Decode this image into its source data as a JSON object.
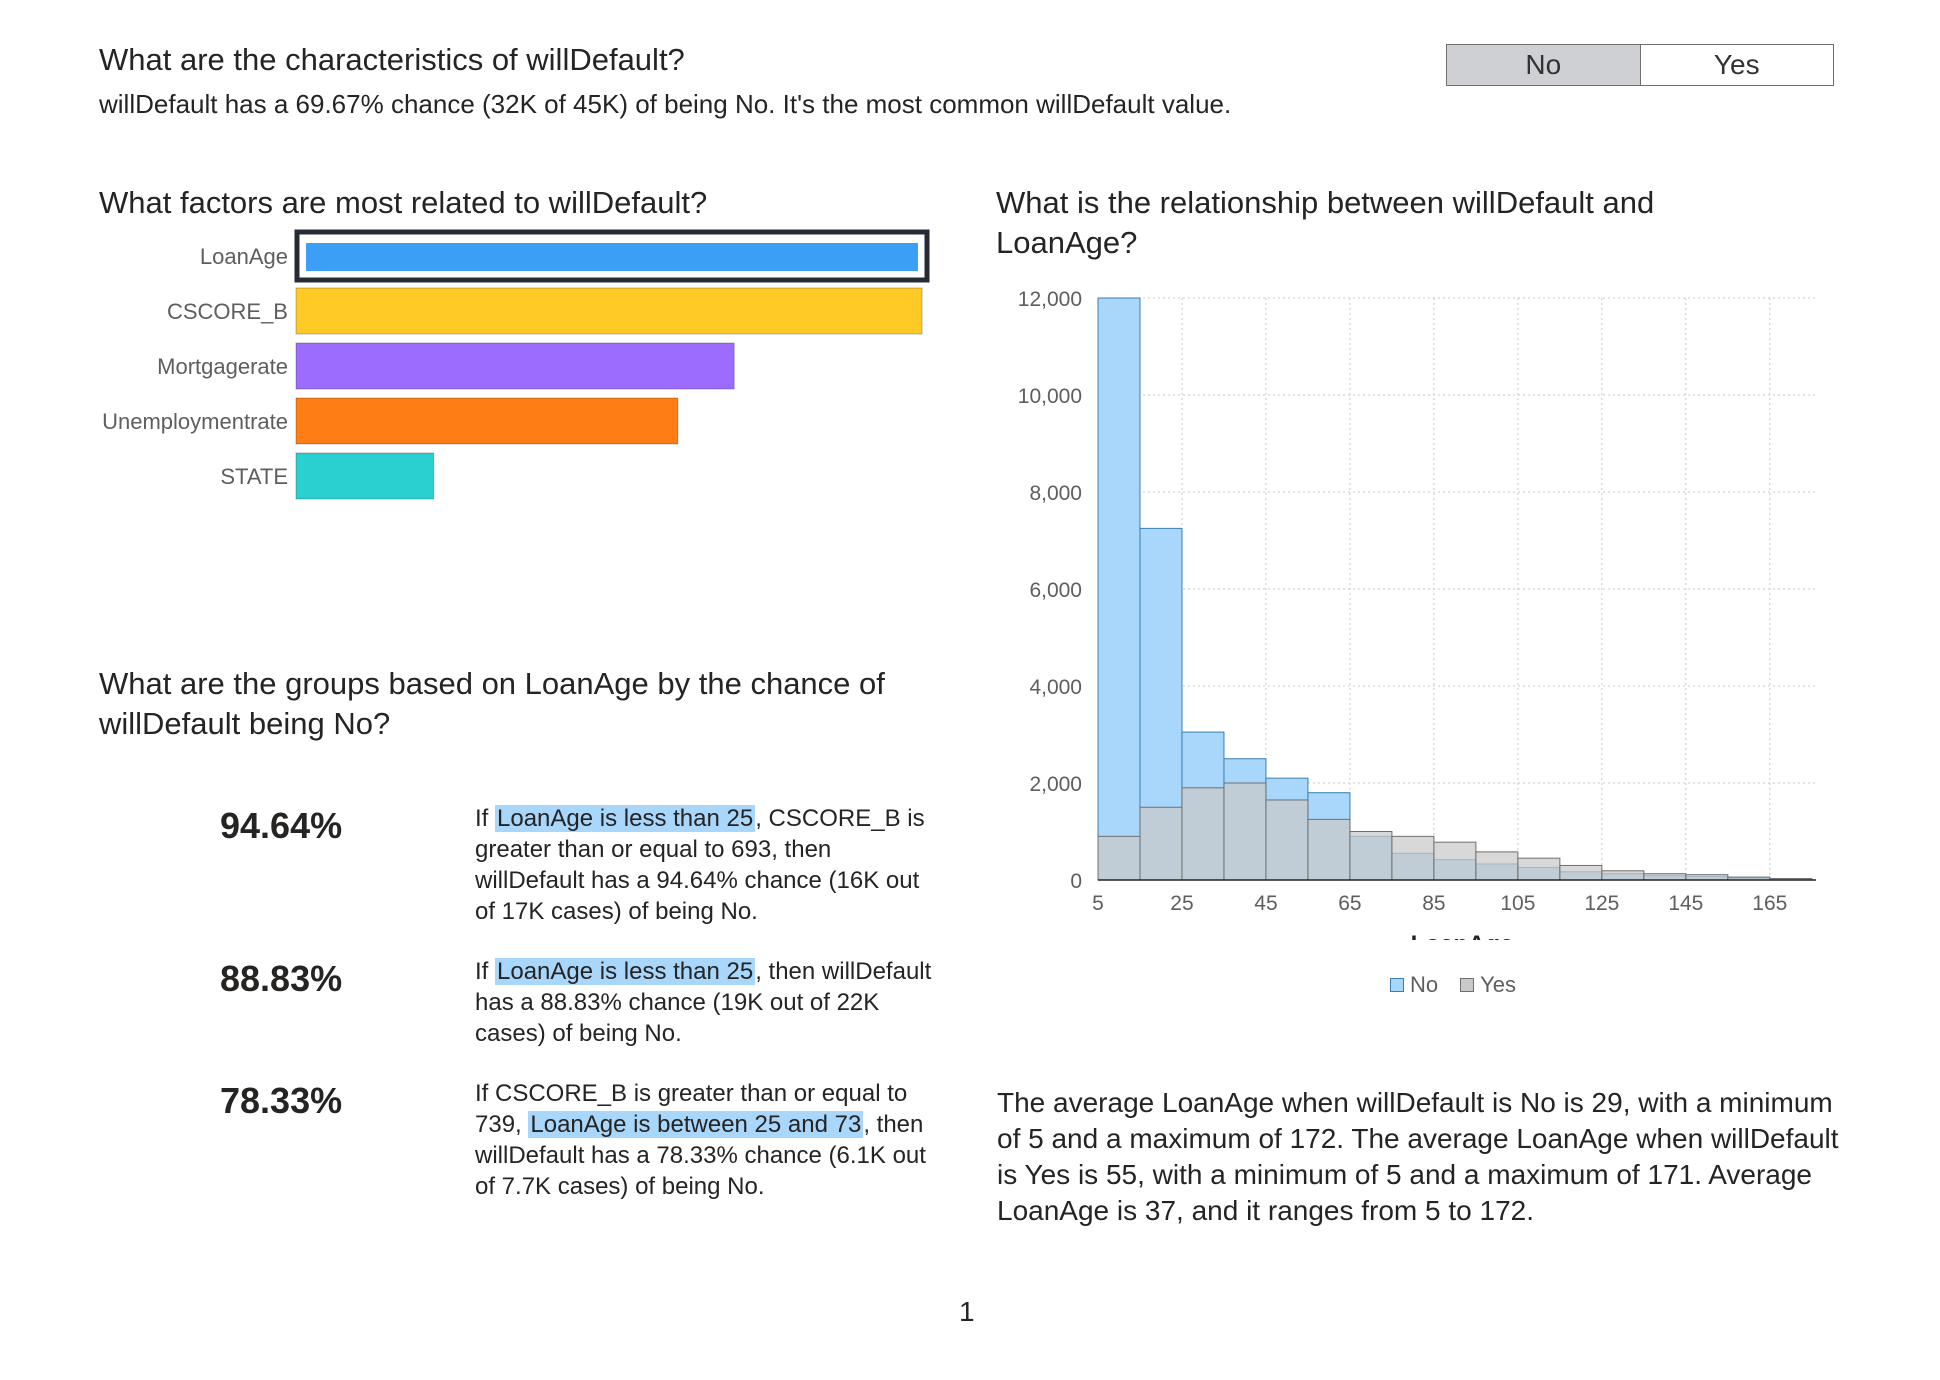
{
  "header": {
    "title": "What are the characteristics of willDefault?",
    "summary": "willDefault has a 69.67% chance (32K of 45K) of being No. It's the most common willDefault value."
  },
  "toggle": {
    "options": [
      "No",
      "Yes"
    ],
    "selected": "No"
  },
  "factors": {
    "title": "What factors are most related to willDefault?",
    "selected": "LoanAge"
  },
  "relationship": {
    "title_line1": "What is the relationship between willDefault and",
    "title_line2": "LoanAge?"
  },
  "groups": {
    "title_line1": "What are the groups based on LoanAge by the chance of",
    "title_line2": "willDefault being No?",
    "items": [
      {
        "pct": "94.64%",
        "pre": "If ",
        "hl1": "LoanAge is less than 25",
        "post": ", CSCORE_B is greater than or equal to 693, then willDefault has a 94.64% chance (16K out of 17K cases) of being No."
      },
      {
        "pct": "88.83%",
        "pre": "If ",
        "hl1": "LoanAge is less than 25",
        "post": ", then willDefault has a 88.83% chance (19K out of 22K cases) of being No."
      },
      {
        "pct": "78.33%",
        "pre": "If CSCORE_B is greater than or equal to 739, ",
        "hl1": "LoanAge is between 25 and 73",
        "post": ", then willDefault has a 78.33% chance (6.1K out of 7.7K cases) of being No."
      }
    ]
  },
  "average_text": "The average LoanAge when willDefault is No is 29, with a minimum of 5 and a maximum of 172. The average LoanAge when willDefault is Yes is 55, with a minimum of 5 and a maximum of 171. Average LoanAge is 37, and it ranges from 5 to 172.",
  "page_number": "1",
  "colors": {
    "factor_bars": [
      "#118dff",
      "#ffc926",
      "#9c6cff",
      "#ff7d14",
      "#2ad0d0"
    ],
    "no_fill": "#a9d6fb",
    "no_stroke": "#3a7fb0",
    "yes_fill": "#c9c9c9",
    "yes_stroke": "#6f6f6f"
  },
  "chart_data": [
    {
      "type": "bar",
      "orientation": "horizontal",
      "title": "What factors are most related to willDefault?",
      "categories": [
        "LoanAge",
        "CSCORE_B",
        "Mortgagerate",
        "Unemploymentrate",
        "STATE"
      ],
      "values": [
        1.0,
        1.0,
        0.7,
        0.61,
        0.22
      ]
    },
    {
      "type": "bar",
      "subtype": "overlapping-histogram",
      "title": "What is the relationship between willDefault and LoanAge?",
      "xlabel": "LoanAge",
      "ylabel": "",
      "bin_edges": [
        5,
        15,
        25,
        35,
        45,
        55,
        65,
        75,
        85,
        95,
        105,
        115,
        125,
        135,
        145,
        155,
        165,
        175
      ],
      "x_ticks": [
        5,
        25,
        45,
        65,
        85,
        105,
        125,
        145,
        165
      ],
      "y_ticks": [
        0,
        2000,
        4000,
        6000,
        8000,
        10000,
        12000
      ],
      "ylim": [
        0,
        12000
      ],
      "grid": true,
      "legend_position": "bottom",
      "series": [
        {
          "name": "No",
          "values": [
            12000,
            7250,
            3050,
            2500,
            2100,
            1800,
            900,
            550,
            420,
            330,
            260,
            170,
            130,
            90,
            70,
            40,
            15
          ]
        },
        {
          "name": "Yes",
          "values": [
            900,
            1500,
            1900,
            2000,
            1650,
            1250,
            1000,
            900,
            780,
            580,
            450,
            300,
            190,
            130,
            110,
            60,
            30
          ]
        }
      ]
    }
  ]
}
